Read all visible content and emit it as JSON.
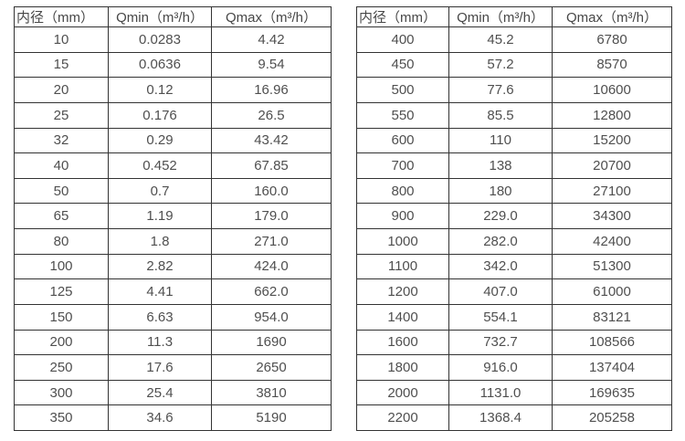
{
  "page": {
    "background_color": "#ffffff",
    "text_color": "#4f4f4f",
    "border_color": "#333333"
  },
  "tables": [
    {
      "name": "flow-table-small-diameters",
      "headers": [
        "内径（mm）",
        "Qmin（m³/h）",
        "Qmax（m³/h）"
      ],
      "rows": [
        [
          "10",
          "0.0283",
          "4.42"
        ],
        [
          "15",
          "0.0636",
          "9.54"
        ],
        [
          "20",
          "0.12",
          "16.96"
        ],
        [
          "25",
          "0.176",
          "26.5"
        ],
        [
          "32",
          "0.29",
          "43.42"
        ],
        [
          "40",
          "0.452",
          "67.85"
        ],
        [
          "50",
          "0.7",
          "160.0"
        ],
        [
          "65",
          "1.19",
          "179.0"
        ],
        [
          "80",
          "1.8",
          "271.0"
        ],
        [
          "100",
          "2.82",
          "424.0"
        ],
        [
          "125",
          "4.41",
          "662.0"
        ],
        [
          "150",
          "6.63",
          "954.0"
        ],
        [
          "200",
          "11.3",
          "1690"
        ],
        [
          "250",
          "17.6",
          "2650"
        ],
        [
          "300",
          "25.4",
          "3810"
        ],
        [
          "350",
          "34.6",
          "5190"
        ]
      ]
    },
    {
      "name": "flow-table-large-diameters",
      "headers": [
        "内径（mm）",
        "Qmin（m³/h）",
        "Qmax（m³/h）"
      ],
      "rows": [
        [
          "400",
          "45.2",
          "6780"
        ],
        [
          "450",
          "57.2",
          "8570"
        ],
        [
          "500",
          "77.6",
          "10600"
        ],
        [
          "550",
          "85.5",
          "12800"
        ],
        [
          "600",
          "110",
          "15200"
        ],
        [
          "700",
          "138",
          "20700"
        ],
        [
          "800",
          "180",
          "27100"
        ],
        [
          "900",
          "229.0",
          "34300"
        ],
        [
          "1000",
          "282.0",
          "42400"
        ],
        [
          "1100",
          "342.0",
          "51300"
        ],
        [
          "1200",
          "407.0",
          "61000"
        ],
        [
          "1400",
          "554.1",
          "83121"
        ],
        [
          "1600",
          "732.7",
          "108566"
        ],
        [
          "1800",
          "916.0",
          "137404"
        ],
        [
          "2000",
          "1131.0",
          "169635"
        ],
        [
          "2200",
          "1368.4",
          "205258"
        ]
      ]
    }
  ]
}
